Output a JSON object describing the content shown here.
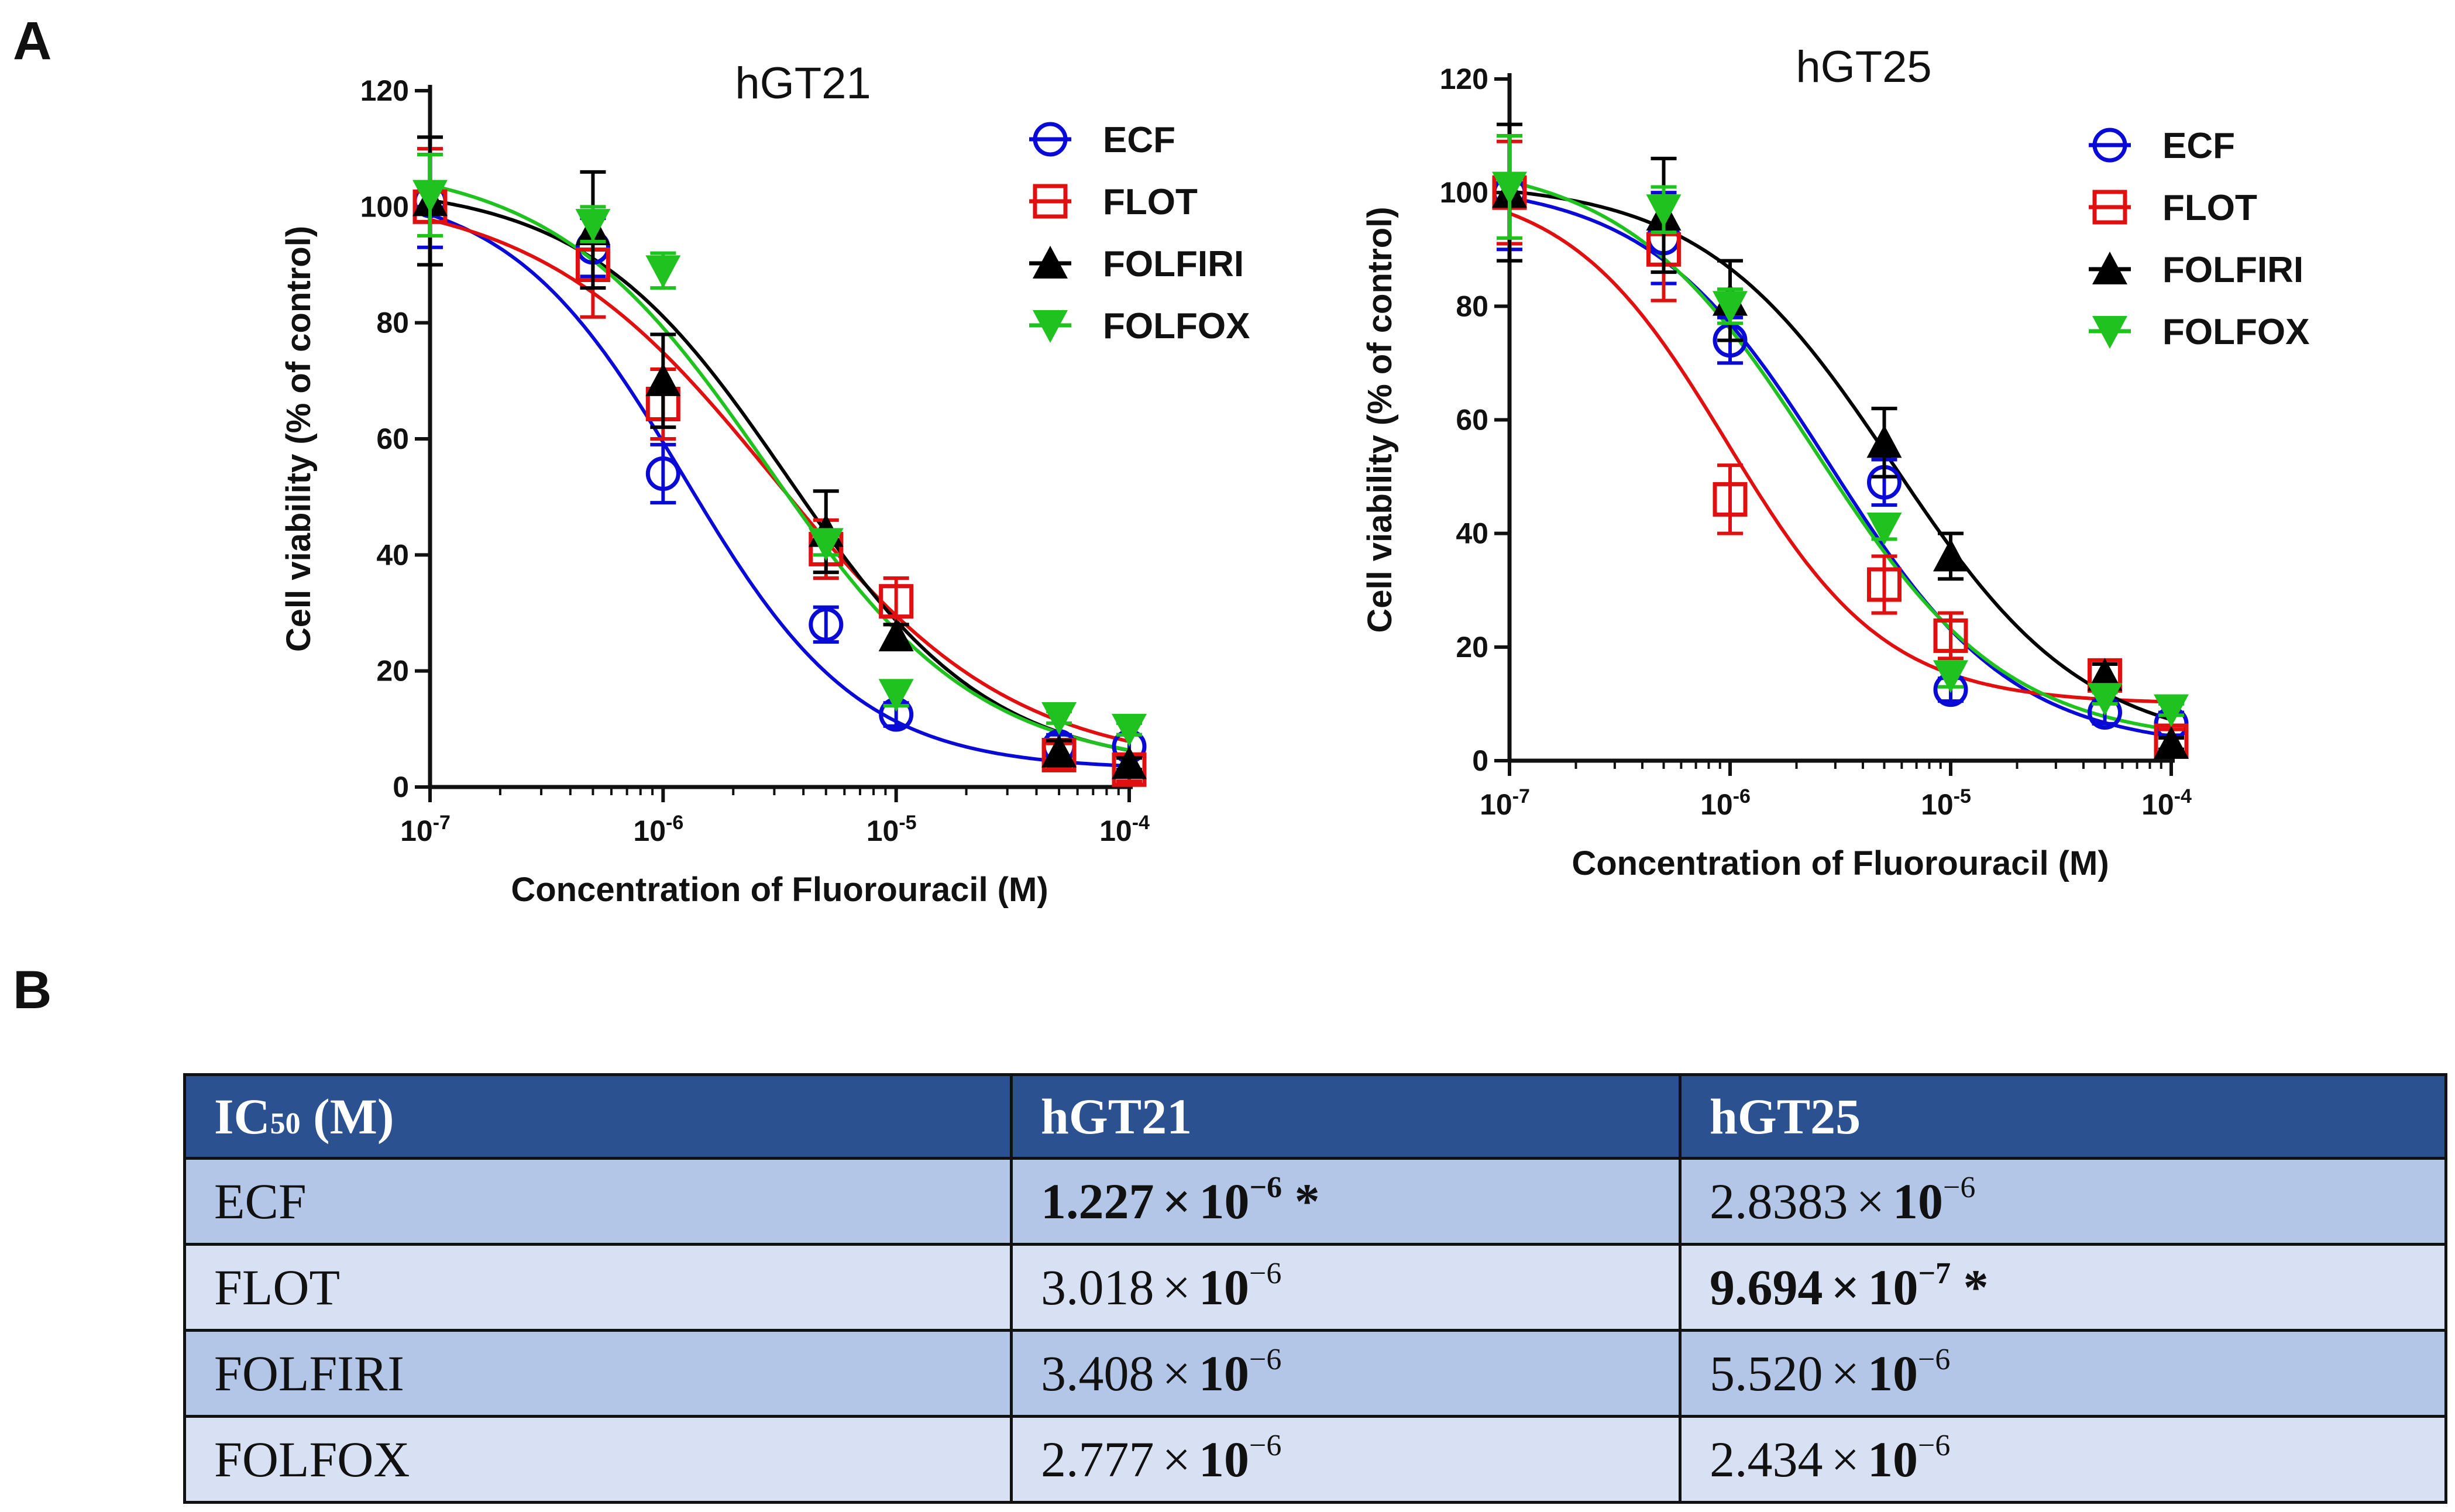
{
  "figure": {
    "panel_a_label": "A",
    "panel_b_label": "B",
    "colors": {
      "ECF": "#0a0ad6",
      "FLOT": "#e01010",
      "FOLFIRI": "#000000",
      "FOLFOX": "#1fc21f"
    }
  },
  "chart_data": [
    {
      "type": "line",
      "title": "hGT21",
      "xlabel": "Concentration of Fluorouracil (M)",
      "ylabel": "Cell viability (% of control)",
      "xscale": "log",
      "xlim": [
        1e-07,
        0.0001
      ],
      "ylim": [
        0,
        120
      ],
      "xticks": [
        1e-07,
        1e-06,
        1e-05,
        0.0001
      ],
      "xtick_labels": [
        {
          "base": "10",
          "exp": "-7"
        },
        {
          "base": "10",
          "exp": "-6"
        },
        {
          "base": "10",
          "exp": "-5"
        },
        {
          "base": "10",
          "exp": "-4"
        }
      ],
      "yticks": [
        0,
        20,
        40,
        60,
        80,
        100,
        120
      ],
      "ytick_labels": [
        "0",
        "20",
        "40",
        "60",
        "80",
        "100",
        "120"
      ],
      "legend_position": "top-right",
      "x": [
        1e-07,
        5e-07,
        1e-06,
        5e-06,
        1e-05,
        5e-05,
        0.0001
      ],
      "series": [
        {
          "name": "ECF",
          "marker": "circle",
          "values": [
            101,
            93,
            54,
            28,
            12.5,
            7,
            7
          ],
          "errors": [
            8,
            5,
            5,
            3,
            2,
            2,
            2
          ],
          "fit": {
            "top": 104,
            "bottom": 3,
            "ic50": 1.227e-06,
            "hill": 1.15
          }
        },
        {
          "name": "FLOT",
          "marker": "square",
          "values": [
            100,
            90,
            66,
            41,
            32,
            5.5,
            3
          ],
          "errors": [
            10,
            9,
            6,
            5,
            4,
            2,
            2
          ],
          "fit": {
            "top": 103,
            "bottom": 3,
            "ic50": 3.018e-06,
            "hill": 0.85
          }
        },
        {
          "name": "FOLFIRI",
          "marker": "triangle-up",
          "values": [
            101,
            96,
            70,
            44,
            26,
            6,
            4
          ],
          "errors": [
            11,
            10,
            8,
            7,
            2,
            2,
            1
          ],
          "fit": {
            "top": 104,
            "bottom": 3,
            "ic50": 3.408e-06,
            "hill": 1.0
          }
        },
        {
          "name": "FOLFOX",
          "marker": "triangle-down",
          "values": [
            102,
            97,
            89,
            42,
            16,
            12,
            10
          ],
          "errors": [
            7,
            3,
            3,
            2,
            2,
            1,
            1
          ],
          "fit": {
            "top": 108,
            "bottom": 3,
            "ic50": 2.777e-06,
            "hill": 0.95
          }
        }
      ]
    },
    {
      "type": "line",
      "title": "hGT25",
      "xlabel": "Concentration of Fluorouracil (M)",
      "ylabel": "Cell viability (% of control)",
      "xscale": "log",
      "xlim": [
        1e-07,
        0.0001
      ],
      "ylim": [
        0,
        120
      ],
      "xticks": [
        1e-07,
        1e-06,
        1e-05,
        0.0001
      ],
      "xtick_labels": [
        {
          "base": "10",
          "exp": "-7"
        },
        {
          "base": "10",
          "exp": "-6"
        },
        {
          "base": "10",
          "exp": "-5"
        },
        {
          "base": "10",
          "exp": "-4"
        }
      ],
      "yticks": [
        0,
        20,
        40,
        60,
        80,
        100,
        120
      ],
      "ytick_labels": [
        "0",
        "20",
        "40",
        "60",
        "80",
        "100",
        "120"
      ],
      "legend_position": "top-right",
      "x": [
        1e-07,
        5e-07,
        1e-06,
        5e-06,
        1e-05,
        5e-05,
        0.0001
      ],
      "series": [
        {
          "name": "ECF",
          "marker": "circle",
          "values": [
            100,
            92,
            74,
            49,
            12.5,
            8.5,
            6.5
          ],
          "errors": [
            10,
            8,
            4,
            4,
            2,
            2,
            2
          ],
          "fit": {
            "top": 102,
            "bottom": 2,
            "ic50": 2.8383e-06,
            "hill": 1.05
          }
        },
        {
          "name": "FLOT",
          "marker": "square",
          "values": [
            100,
            90,
            46,
            31,
            22,
            15,
            3.5
          ],
          "errors": [
            9,
            9,
            6,
            5,
            4,
            2,
            2
          ],
          "fit": {
            "top": 102,
            "bottom": 10,
            "ic50": 9.694e-07,
            "hill": 1.2
          }
        },
        {
          "name": "FOLFIRI",
          "marker": "triangle-up",
          "values": [
            100,
            96,
            81,
            56,
            36,
            15,
            3
          ],
          "errors": [
            12,
            10,
            7,
            6,
            4,
            2,
            1
          ],
          "fit": {
            "top": 102,
            "bottom": 2,
            "ic50": 5.52e-06,
            "hill": 1.0
          }
        },
        {
          "name": "FOLFOX",
          "marker": "triangle-down",
          "values": [
            101,
            97,
            80,
            41,
            15,
            11,
            9
          ],
          "errors": [
            9,
            4,
            3,
            2,
            2,
            1,
            1
          ],
          "fit": {
            "top": 106,
            "bottom": 3,
            "ic50": 2.434e-06,
            "hill": 1.0
          }
        }
      ]
    }
  ],
  "table": {
    "header": {
      "label_main": "IC",
      "label_sub": "50",
      "label_unit": " (M)",
      "col1": "hGT21",
      "col2": "hGT25"
    },
    "times": "×",
    "rows": [
      {
        "name": "ECF",
        "hgt21": {
          "mantissa": "1.227",
          "base": "10",
          "exp": "−6",
          "mark": " *",
          "bold": true
        },
        "hgt25": {
          "mantissa": "2.8383",
          "base": "10",
          "exp": "−6",
          "mark": "",
          "bold": false
        }
      },
      {
        "name": "FLOT",
        "hgt21": {
          "mantissa": "3.018",
          "base": "10",
          "exp": "−6",
          "mark": "",
          "bold": false
        },
        "hgt25": {
          "mantissa": "9.694",
          "base": "10",
          "exp": "−7",
          "mark": " *",
          "bold": true
        }
      },
      {
        "name": "FOLFIRI",
        "hgt21": {
          "mantissa": "3.408",
          "base": "10",
          "exp": "−6",
          "mark": "",
          "bold": false
        },
        "hgt25": {
          "mantissa": "5.520",
          "base": "10",
          "exp": "−6",
          "mark": "",
          "bold": false
        }
      },
      {
        "name": "FOLFOX",
        "hgt21": {
          "mantissa": "2.777",
          "base": "10",
          "exp": "−6",
          "mark": "",
          "bold": false
        },
        "hgt25": {
          "mantissa": "2.434",
          "base": "10",
          "exp": "−6",
          "mark": "",
          "bold": false
        }
      }
    ]
  }
}
